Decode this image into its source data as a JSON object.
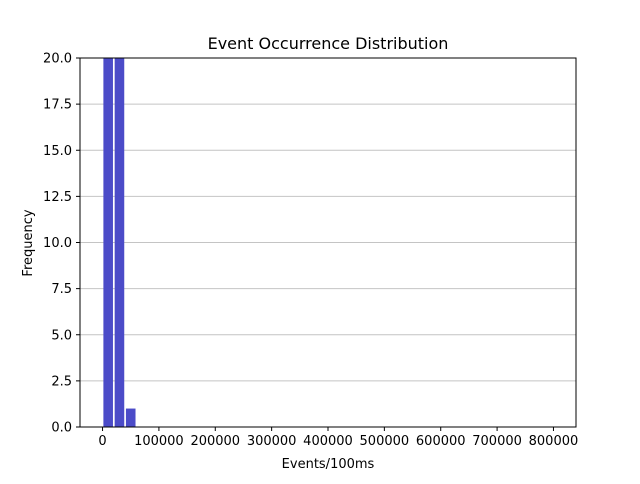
{
  "chart_data": {
    "type": "bar",
    "title": "Event Occurrence Distribution",
    "xlabel": "Events/100ms",
    "ylabel": "Frequency",
    "xlim": [
      -40000,
      840000
    ],
    "ylim": [
      0,
      20
    ],
    "x_ticks": [
      0,
      100000,
      200000,
      300000,
      400000,
      500000,
      600000,
      700000,
      800000
    ],
    "y_ticks": [
      0.0,
      2.5,
      5.0,
      7.5,
      10.0,
      12.5,
      15.0,
      17.5,
      20.0
    ],
    "y_grid": true,
    "x_grid": false,
    "bin_width": 20000,
    "bins": [
      {
        "x": 10000,
        "value": 20
      },
      {
        "x": 30000,
        "value": 20
      },
      {
        "x": 50000,
        "value": 1
      }
    ],
    "bar_color": "#4b4bc8"
  }
}
